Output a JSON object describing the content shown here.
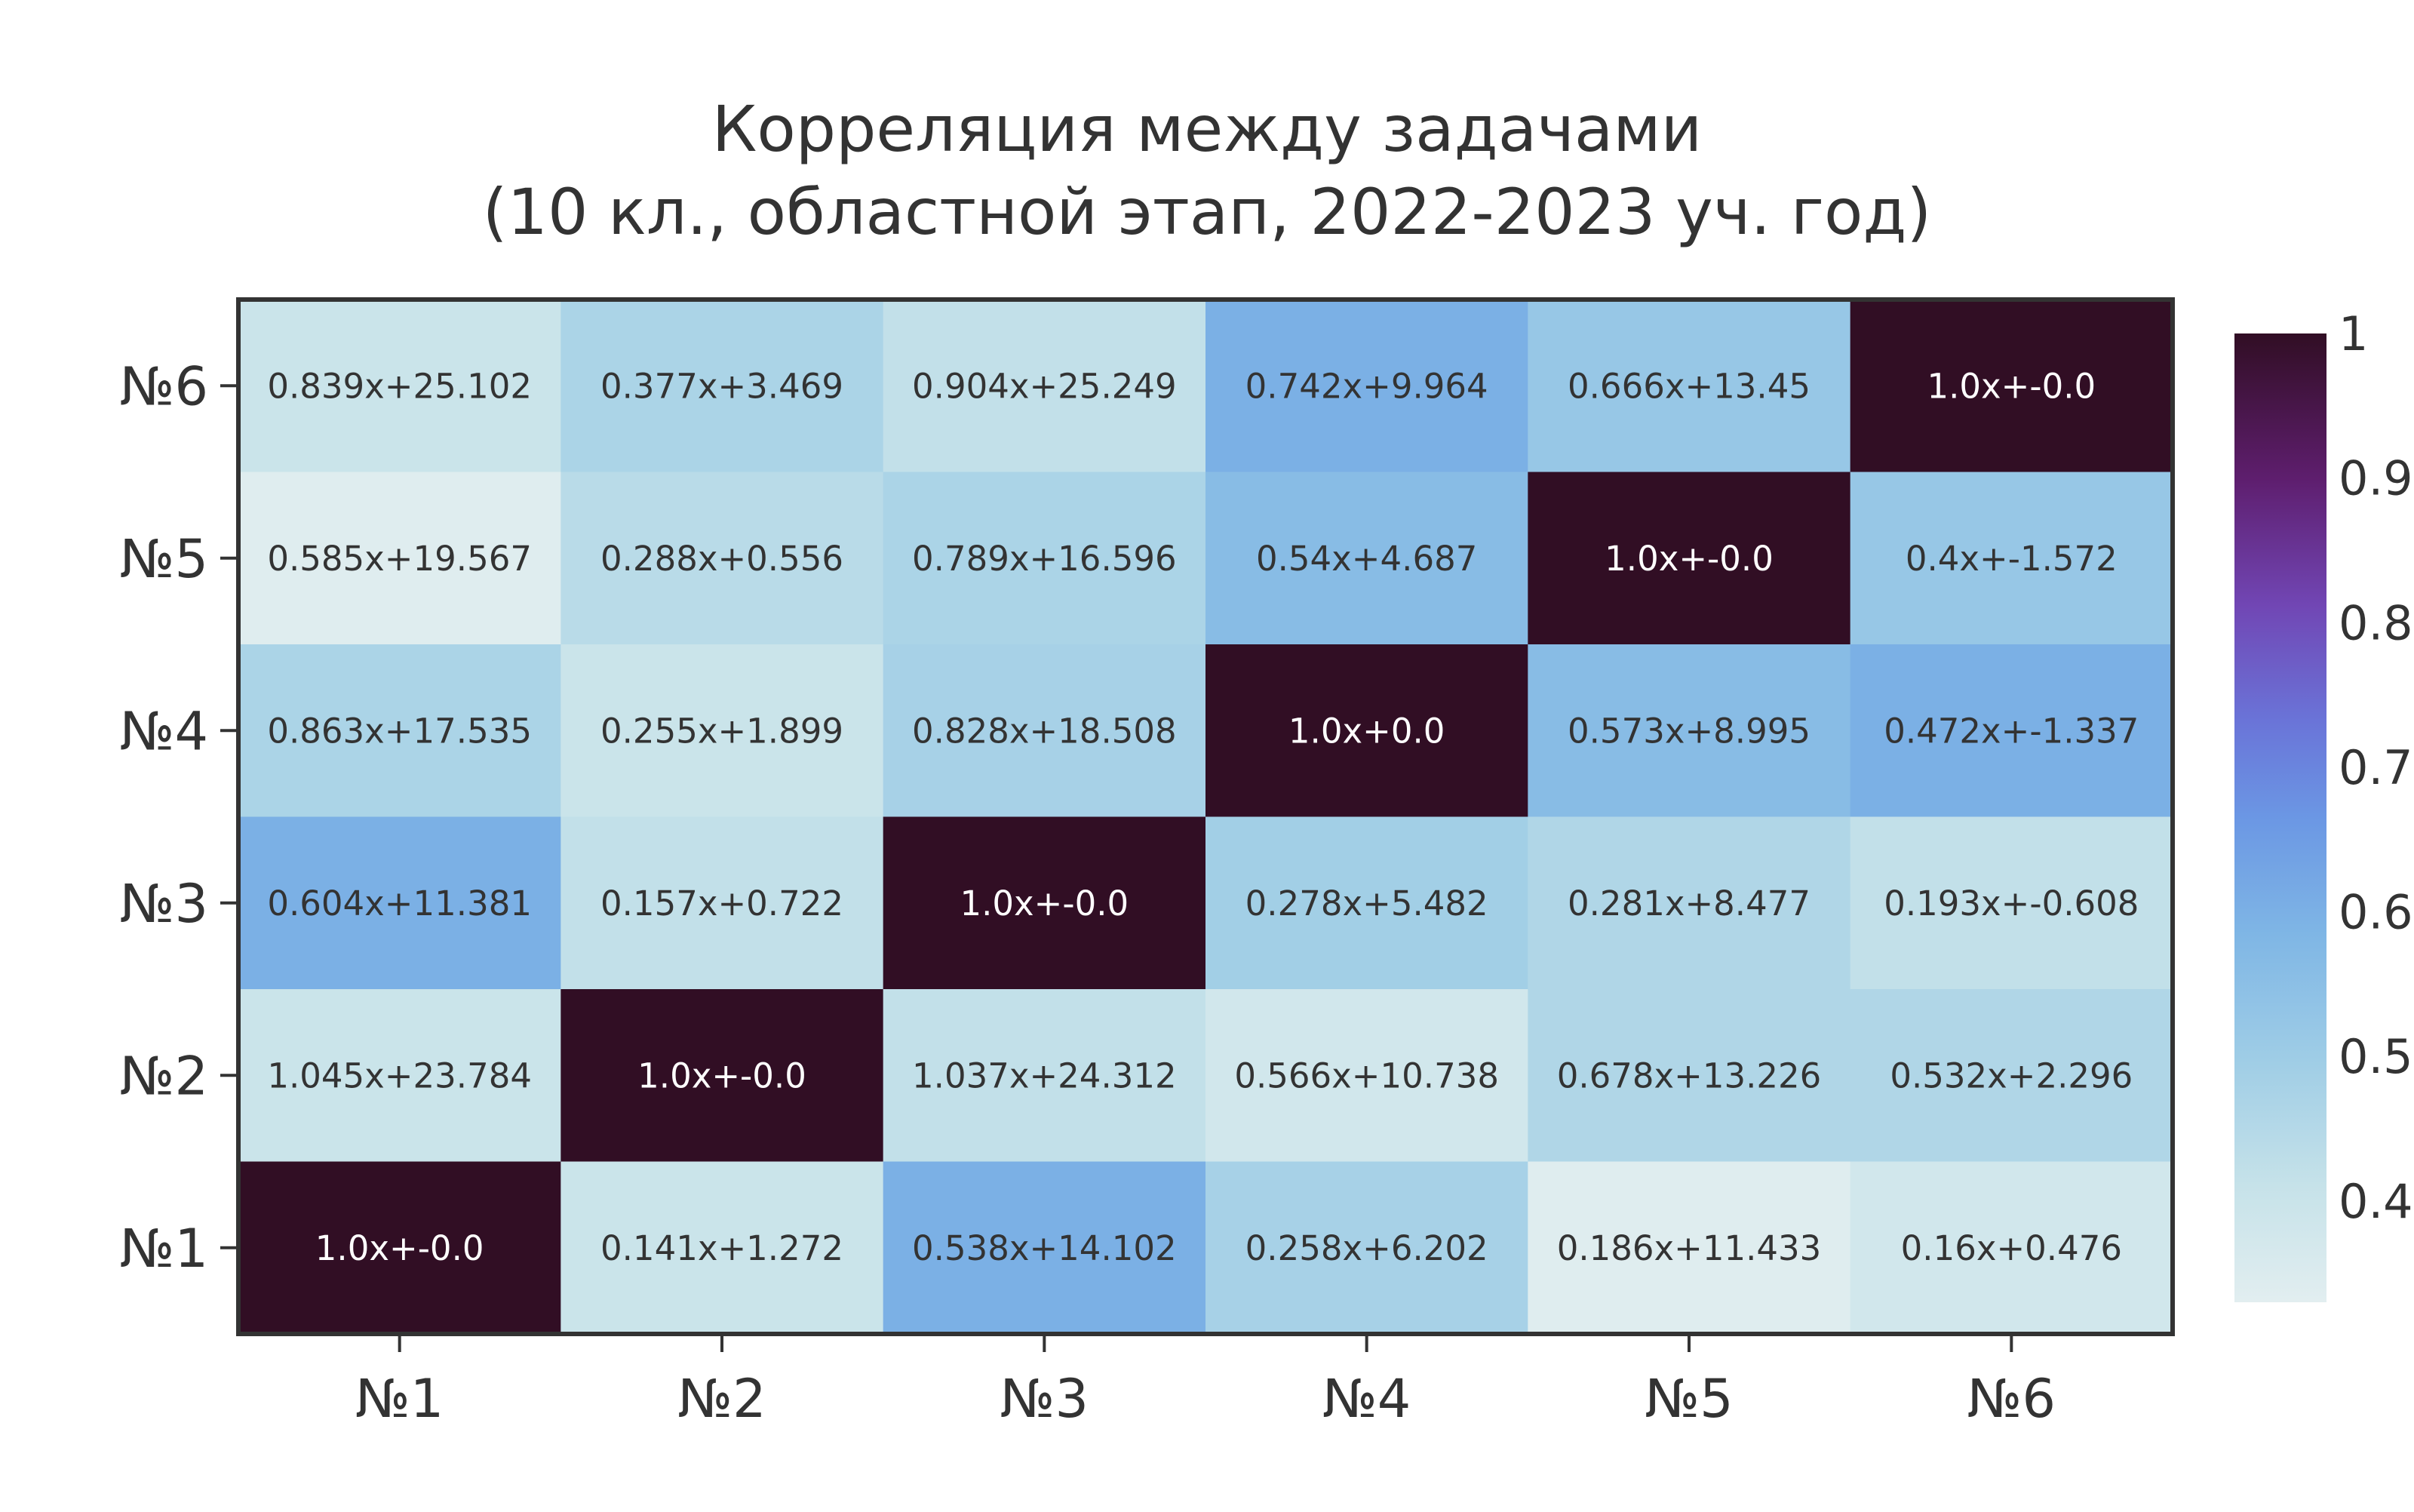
{
  "chart_data": {
    "type": "heatmap",
    "title": "Корреляция между задачами",
    "subtitle": "(10 кл., областной этап, 2022-2023 уч. год)",
    "x_labels": [
      "№1",
      "№2",
      "№3",
      "№4",
      "№5",
      "№6"
    ],
    "y_labels": [
      "№6",
      "№5",
      "№4",
      "№3",
      "№2",
      "№1"
    ],
    "cell_labels": [
      [
        "0.839x+25.102",
        "0.377x+3.469",
        "0.904x+25.249",
        "0.742x+9.964",
        "0.666x+13.45",
        "1.0x+-0.0"
      ],
      [
        "0.585x+19.567",
        "0.288x+0.556",
        "0.789x+16.596",
        "0.54x+4.687",
        "1.0x+-0.0",
        "0.4x+-1.572"
      ],
      [
        "0.863x+17.535",
        "0.255x+1.899",
        "0.828x+18.508",
        "1.0x+0.0",
        "0.573x+8.995",
        "0.472x+-1.337"
      ],
      [
        "0.604x+11.381",
        "0.157x+0.722",
        "1.0x+-0.0",
        "0.278x+5.482",
        "0.281x+8.477",
        "0.193x+-0.608"
      ],
      [
        "1.045x+23.784",
        "1.0x+-0.0",
        "1.037x+24.312",
        "0.566x+10.738",
        "0.678x+13.226",
        "0.532x+2.296"
      ],
      [
        "1.0x+-0.0",
        "0.141x+1.272",
        "0.538x+14.102",
        "0.258x+6.202",
        "0.186x+11.433",
        "0.16x+0.476"
      ]
    ],
    "values": [
      [
        0.4,
        0.47,
        0.42,
        0.6,
        0.52,
        1.0
      ],
      [
        0.34,
        0.44,
        0.47,
        0.56,
        1.0,
        0.52
      ],
      [
        0.47,
        0.4,
        0.48,
        1.0,
        0.56,
        0.6
      ],
      [
        0.6,
        0.42,
        1.0,
        0.49,
        0.46,
        0.42
      ],
      [
        0.4,
        1.0,
        0.42,
        0.38,
        0.46,
        0.46
      ],
      [
        1.0,
        0.4,
        0.6,
        0.48,
        0.34,
        0.38
      ]
    ],
    "colorbar": {
      "min": 0.33,
      "max": 1.0,
      "ticks": [
        "0.4",
        "0.5",
        "0.6",
        "0.7",
        "0.8",
        "0.9",
        "1"
      ],
      "tick_values": [
        0.4,
        0.5,
        0.6,
        0.7,
        0.8,
        0.9,
        1.0
      ],
      "colormap": [
        [
          0.0,
          "#e2eef0"
        ],
        [
          0.12,
          "#c6e2e9"
        ],
        [
          0.25,
          "#9fcde6"
        ],
        [
          0.38,
          "#7fb6e5"
        ],
        [
          0.5,
          "#6b97e4"
        ],
        [
          0.6,
          "#6a74d8"
        ],
        [
          0.72,
          "#7146b4"
        ],
        [
          0.85,
          "#5e1e6e"
        ],
        [
          1.0,
          "#310e24"
        ]
      ]
    },
    "colors": {
      "text_dark": "#333333",
      "text_light": "#ffffff",
      "frame": "#333333"
    }
  }
}
